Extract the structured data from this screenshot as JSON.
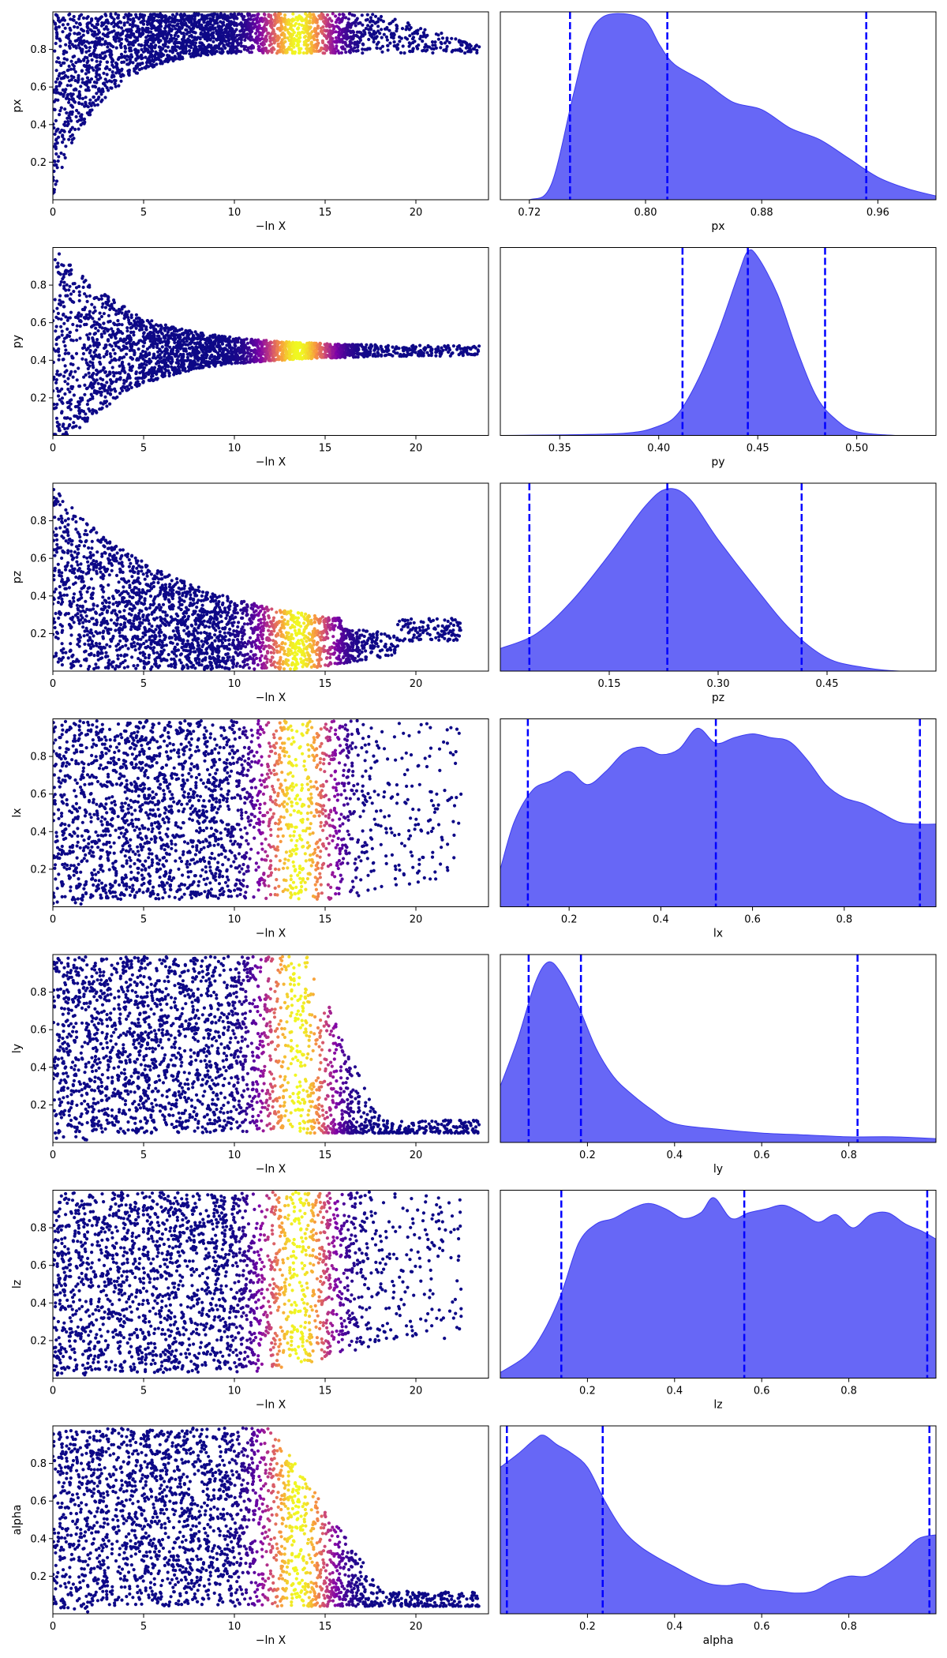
{
  "colors": {
    "trace_low": "#0d0887",
    "trace_mid": "#cc4778",
    "trace_high": "#f0f921",
    "posterior_fill": "#5a5af5",
    "posterior_edge": "#3b3bf0",
    "quantile_line": "#0000ff"
  },
  "chart_data": [
    {
      "type": "scatter",
      "panel": "trace",
      "parameter": "px",
      "xlabel": "−ln X",
      "ylabel": "px",
      "xlim": [
        0,
        24
      ],
      "ylim": [
        0,
        1
      ],
      "xticks": [
        "0",
        "5",
        "10",
        "15",
        "20"
      ],
      "yticks": [
        "0.2",
        "0.4",
        "0.6",
        "0.8"
      ],
      "colormap": "plasma",
      "color_peak": 13.5,
      "points": [
        [
          0.3,
          0.05
        ],
        [
          1,
          0.25
        ],
        [
          1.5,
          0.4
        ],
        [
          2,
          0.5
        ],
        [
          3,
          0.58
        ],
        [
          4,
          0.63
        ],
        [
          5,
          0.68
        ],
        [
          6,
          0.7
        ],
        [
          8,
          0.73
        ],
        [
          10,
          0.75
        ],
        [
          12,
          0.76
        ],
        [
          14,
          0.77
        ],
        [
          16,
          0.78
        ],
        [
          18,
          0.79
        ],
        [
          20,
          0.8
        ],
        [
          22,
          0.82
        ],
        [
          23,
          0.84
        ]
      ],
      "max_x": 24
    },
    {
      "type": "area",
      "panel": "posterior",
      "parameter": "px",
      "xlabel": "px",
      "xlim": [
        0.7,
        1.0
      ],
      "xticks": [
        "0.72",
        "0.80",
        "0.88",
        "0.96"
      ],
      "quantiles": [
        0.748,
        0.815,
        0.952
      ],
      "density": [
        [
          0.7,
          0
        ],
        [
          0.72,
          0
        ],
        [
          0.735,
          0.08
        ],
        [
          0.75,
          0.55
        ],
        [
          0.76,
          0.85
        ],
        [
          0.77,
          0.97
        ],
        [
          0.785,
          0.99
        ],
        [
          0.8,
          0.95
        ],
        [
          0.81,
          0.82
        ],
        [
          0.82,
          0.72
        ],
        [
          0.84,
          0.63
        ],
        [
          0.86,
          0.52
        ],
        [
          0.88,
          0.48
        ],
        [
          0.9,
          0.38
        ],
        [
          0.92,
          0.32
        ],
        [
          0.94,
          0.22
        ],
        [
          0.96,
          0.12
        ],
        [
          0.98,
          0.06
        ],
        [
          1.0,
          0.02
        ]
      ]
    },
    {
      "type": "scatter",
      "panel": "trace",
      "parameter": "py",
      "xlabel": "−ln X",
      "ylabel": "py",
      "xlim": [
        0,
        24
      ],
      "ylim": [
        0,
        1
      ],
      "xticks": [
        "0",
        "5",
        "10",
        "15",
        "20"
      ],
      "yticks": [
        "0.2",
        "0.4",
        "0.6",
        "0.8"
      ],
      "colormap": "plasma",
      "color_peak": 13.5,
      "center": 0.45,
      "max_x": 24
    },
    {
      "type": "area",
      "panel": "posterior",
      "parameter": "py",
      "xlabel": "py",
      "xlim": [
        0.32,
        0.54
      ],
      "xticks": [
        "0.35",
        "0.40",
        "0.45",
        "0.50"
      ],
      "quantiles": [
        0.412,
        0.445,
        0.484
      ],
      "density": [
        [
          0.32,
          0
        ],
        [
          0.38,
          0.01
        ],
        [
          0.4,
          0.05
        ],
        [
          0.41,
          0.12
        ],
        [
          0.42,
          0.3
        ],
        [
          0.43,
          0.55
        ],
        [
          0.44,
          0.85
        ],
        [
          0.445,
          0.98
        ],
        [
          0.45,
          0.95
        ],
        [
          0.46,
          0.75
        ],
        [
          0.47,
          0.45
        ],
        [
          0.48,
          0.2
        ],
        [
          0.49,
          0.08
        ],
        [
          0.5,
          0.02
        ],
        [
          0.52,
          0
        ],
        [
          0.54,
          0
        ]
      ]
    },
    {
      "type": "scatter",
      "panel": "trace",
      "parameter": "pz",
      "xlabel": "−ln X",
      "ylabel": "pz",
      "xlim": [
        0,
        24
      ],
      "ylim": [
        0,
        1
      ],
      "xticks": [
        "0",
        "5",
        "10",
        "15",
        "20"
      ],
      "yticks": [
        "0.2",
        "0.4",
        "0.6",
        "0.8"
      ],
      "colormap": "plasma",
      "color_peak": 13.5,
      "center": 0.22,
      "max_x": 23
    },
    {
      "type": "area",
      "panel": "posterior",
      "parameter": "pz",
      "xlabel": "pz",
      "xlim": [
        0.0,
        0.6
      ],
      "xticks": [
        "0.15",
        "0.30",
        "0.45"
      ],
      "quantiles": [
        0.04,
        0.23,
        0.415
      ],
      "density": [
        [
          0,
          0.12
        ],
        [
          0.05,
          0.2
        ],
        [
          0.1,
          0.38
        ],
        [
          0.15,
          0.62
        ],
        [
          0.2,
          0.88
        ],
        [
          0.23,
          0.97
        ],
        [
          0.26,
          0.92
        ],
        [
          0.3,
          0.7
        ],
        [
          0.35,
          0.45
        ],
        [
          0.4,
          0.22
        ],
        [
          0.45,
          0.07
        ],
        [
          0.5,
          0.02
        ],
        [
          0.55,
          0
        ],
        [
          0.6,
          0
        ]
      ]
    },
    {
      "type": "scatter",
      "panel": "trace",
      "parameter": "lx",
      "xlabel": "−ln X",
      "ylabel": "lx",
      "xlim": [
        0,
        24
      ],
      "ylim": [
        0,
        1
      ],
      "xticks": [
        "0",
        "5",
        "10",
        "15",
        "20"
      ],
      "yticks": [
        "0.2",
        "0.4",
        "0.6",
        "0.8"
      ],
      "colormap": "plasma",
      "color_peak": 13.5,
      "max_x": 23
    },
    {
      "type": "area",
      "panel": "posterior",
      "parameter": "lx",
      "xlabel": "lx",
      "xlim": [
        0.05,
        1.0
      ],
      "xticks": [
        "0.2",
        "0.4",
        "0.6",
        "0.8"
      ],
      "quantiles": [
        0.11,
        0.52,
        0.965
      ],
      "density": [
        [
          0.05,
          0.2
        ],
        [
          0.08,
          0.45
        ],
        [
          0.12,
          0.62
        ],
        [
          0.16,
          0.67
        ],
        [
          0.2,
          0.72
        ],
        [
          0.24,
          0.65
        ],
        [
          0.28,
          0.72
        ],
        [
          0.32,
          0.82
        ],
        [
          0.36,
          0.85
        ],
        [
          0.4,
          0.81
        ],
        [
          0.44,
          0.84
        ],
        [
          0.48,
          0.95
        ],
        [
          0.52,
          0.87
        ],
        [
          0.56,
          0.9
        ],
        [
          0.6,
          0.92
        ],
        [
          0.64,
          0.9
        ],
        [
          0.68,
          0.88
        ],
        [
          0.72,
          0.78
        ],
        [
          0.76,
          0.65
        ],
        [
          0.8,
          0.58
        ],
        [
          0.84,
          0.55
        ],
        [
          0.88,
          0.5
        ],
        [
          0.92,
          0.45
        ],
        [
          0.96,
          0.44
        ],
        [
          1.0,
          0.44
        ]
      ]
    },
    {
      "type": "scatter",
      "panel": "trace",
      "parameter": "ly",
      "xlabel": "−ln X",
      "ylabel": "ly",
      "xlim": [
        0,
        24
      ],
      "ylim": [
        0,
        1
      ],
      "xticks": [
        "0",
        "5",
        "10",
        "15",
        "20"
      ],
      "yticks": [
        "0.2",
        "0.4",
        "0.6",
        "0.8"
      ],
      "colormap": "plasma",
      "color_peak": 13.5,
      "max_x": 24
    },
    {
      "type": "area",
      "panel": "posterior",
      "parameter": "ly",
      "xlabel": "ly",
      "xlim": [
        0.0,
        1.0
      ],
      "xticks": [
        "0.2",
        "0.4",
        "0.6",
        "0.8"
      ],
      "quantiles": [
        0.065,
        0.185,
        0.82
      ],
      "density": [
        [
          0,
          0.3
        ],
        [
          0.04,
          0.55
        ],
        [
          0.08,
          0.85
        ],
        [
          0.11,
          0.96
        ],
        [
          0.14,
          0.9
        ],
        [
          0.18,
          0.72
        ],
        [
          0.22,
          0.5
        ],
        [
          0.26,
          0.35
        ],
        [
          0.3,
          0.26
        ],
        [
          0.35,
          0.17
        ],
        [
          0.4,
          0.1
        ],
        [
          0.5,
          0.07
        ],
        [
          0.6,
          0.05
        ],
        [
          0.7,
          0.04
        ],
        [
          0.8,
          0.03
        ],
        [
          0.9,
          0.03
        ],
        [
          1.0,
          0.02
        ]
      ]
    },
    {
      "type": "scatter",
      "panel": "trace",
      "parameter": "lz",
      "xlabel": "−ln X",
      "ylabel": "lz",
      "xlim": [
        0,
        24
      ],
      "ylim": [
        0,
        1
      ],
      "xticks": [
        "0",
        "5",
        "10",
        "15",
        "20"
      ],
      "yticks": [
        "0.2",
        "0.4",
        "0.6",
        "0.8"
      ],
      "colormap": "plasma",
      "color_peak": 13.5,
      "max_x": 23
    },
    {
      "type": "area",
      "panel": "posterior",
      "parameter": "lz",
      "xlabel": "lz",
      "xlim": [
        0.0,
        1.0
      ],
      "xticks": [
        "0.2",
        "0.4",
        "0.6",
        "0.8"
      ],
      "quantiles": [
        0.14,
        0.56,
        0.98
      ],
      "density": [
        [
          0,
          0.03
        ],
        [
          0.06,
          0.12
        ],
        [
          0.1,
          0.25
        ],
        [
          0.14,
          0.45
        ],
        [
          0.18,
          0.72
        ],
        [
          0.22,
          0.82
        ],
        [
          0.26,
          0.85
        ],
        [
          0.3,
          0.9
        ],
        [
          0.34,
          0.93
        ],
        [
          0.38,
          0.9
        ],
        [
          0.42,
          0.85
        ],
        [
          0.46,
          0.88
        ],
        [
          0.49,
          0.96
        ],
        [
          0.53,
          0.85
        ],
        [
          0.57,
          0.88
        ],
        [
          0.61,
          0.9
        ],
        [
          0.65,
          0.92
        ],
        [
          0.69,
          0.88
        ],
        [
          0.73,
          0.83
        ],
        [
          0.77,
          0.87
        ],
        [
          0.81,
          0.8
        ],
        [
          0.85,
          0.87
        ],
        [
          0.89,
          0.88
        ],
        [
          0.93,
          0.82
        ],
        [
          0.97,
          0.78
        ],
        [
          1.0,
          0.74
        ]
      ]
    },
    {
      "type": "scatter",
      "panel": "trace",
      "parameter": "alpha",
      "xlabel": "−ln X",
      "ylabel": "alpha",
      "xlim": [
        0,
        24
      ],
      "ylim": [
        0,
        1
      ],
      "xticks": [
        "0",
        "5",
        "10",
        "15",
        "20"
      ],
      "yticks": [
        "0.2",
        "0.4",
        "0.6",
        "0.8"
      ],
      "colormap": "plasma",
      "color_peak": 13.5,
      "max_x": 24
    },
    {
      "type": "area",
      "panel": "posterior",
      "parameter": "alpha",
      "xlabel": "alpha",
      "xlim": [
        0.0,
        1.0
      ],
      "xticks": [
        "0.2",
        "0.4",
        "0.6",
        "0.8"
      ],
      "quantiles": [
        0.015,
        0.235,
        0.985
      ],
      "density": [
        [
          0,
          0.78
        ],
        [
          0.04,
          0.85
        ],
        [
          0.08,
          0.93
        ],
        [
          0.1,
          0.95
        ],
        [
          0.13,
          0.9
        ],
        [
          0.16,
          0.86
        ],
        [
          0.2,
          0.78
        ],
        [
          0.24,
          0.6
        ],
        [
          0.28,
          0.45
        ],
        [
          0.32,
          0.36
        ],
        [
          0.36,
          0.3
        ],
        [
          0.4,
          0.25
        ],
        [
          0.44,
          0.2
        ],
        [
          0.48,
          0.16
        ],
        [
          0.52,
          0.15
        ],
        [
          0.56,
          0.16
        ],
        [
          0.6,
          0.13
        ],
        [
          0.64,
          0.12
        ],
        [
          0.68,
          0.11
        ],
        [
          0.72,
          0.12
        ],
        [
          0.76,
          0.17
        ],
        [
          0.8,
          0.2
        ],
        [
          0.84,
          0.2
        ],
        [
          0.88,
          0.25
        ],
        [
          0.92,
          0.32
        ],
        [
          0.96,
          0.4
        ],
        [
          1.0,
          0.42
        ]
      ]
    }
  ]
}
